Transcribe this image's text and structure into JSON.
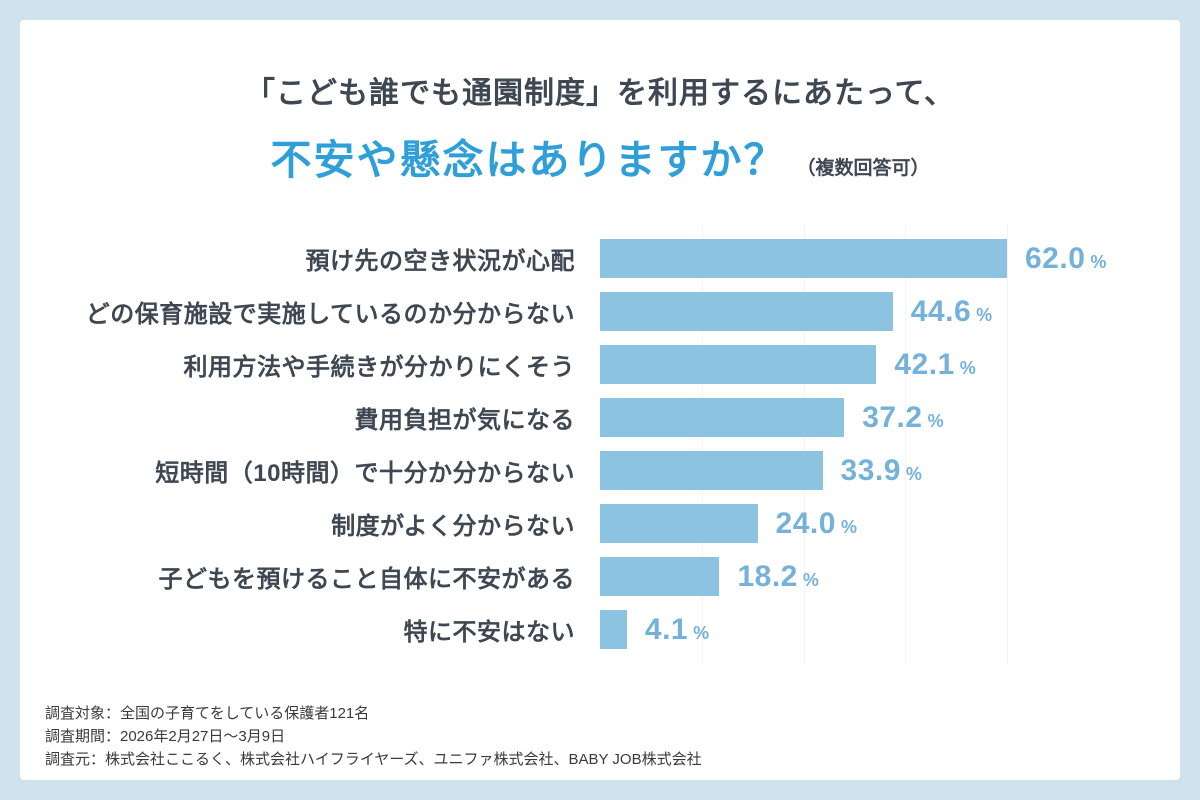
{
  "header": {
    "title_line1": "「こども誰でも通園制度」を利用するにあたって、",
    "title_line2": "不安や懸念はありますか？",
    "title_note": "（複数回答可）"
  },
  "chart_data": {
    "type": "bar",
    "orientation": "horizontal",
    "title": "「こども誰でも通園制度」を利用するにあたって、不安や懸念はありますか？（複数回答可）",
    "categories": [
      "預け先の空き状況が心配",
      "どの保育施設で実施しているのか分からない",
      "利用方法や手続きが分かりにくそう",
      "費用負担が気になる",
      "短時間（10時間）で十分か分からない",
      "制度がよく分からない",
      "子どもを預けること自体に不安がある",
      "特に不安はない"
    ],
    "values": [
      62.0,
      44.6,
      42.1,
      37.2,
      33.9,
      24.0,
      18.2,
      4.1
    ],
    "unit": "%",
    "xlim": [
      0,
      62
    ],
    "grid_divisions": 4,
    "grid": true,
    "legend": false,
    "bar_color": "#8BC3E1",
    "value_label_color": "#74B2D9"
  },
  "footer": {
    "lines": [
      "調査対象：全国の子育てをしている保護者121名",
      "調査期間：2026年2月27日〜3月9日",
      "調査元：株式会社ここるく、株式会社ハイフライヤーズ、ユニファ株式会社、BABY JOB株式会社"
    ]
  },
  "colors": {
    "page_background": "#CFE2ED",
    "card_background": "#FFFFFF",
    "title_accent": "#2E9FD9",
    "text_dark": "#3E4752",
    "gridline": "#EFF4F8"
  }
}
